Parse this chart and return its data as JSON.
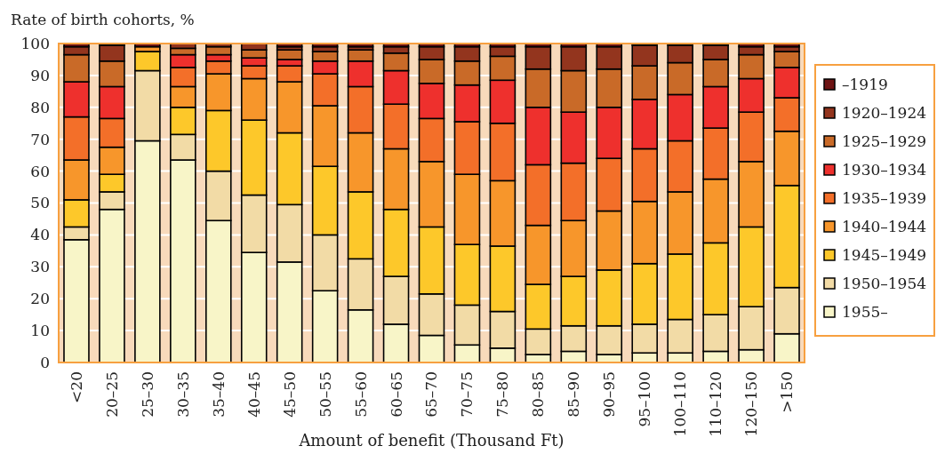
{
  "chart_data": {
    "type": "bar",
    "stacked": true,
    "ylabel": "Rate of birth cohorts, %",
    "xlabel": "Amount of benefit (Thousand Ft)",
    "categories": [
      "<20",
      "20–25",
      "25–30",
      "30–35",
      "35–40",
      "40–45",
      "45–50",
      "50–55",
      "55–60",
      "60–65",
      "65–70",
      "70–75",
      "75–80",
      "80–85",
      "85–90",
      "90–95",
      "95–100",
      "100–110",
      "110–120",
      "120–150",
      ">150"
    ],
    "ylim": [
      0,
      100
    ],
    "yticks": [
      0,
      10,
      20,
      30,
      40,
      50,
      60,
      70,
      80,
      90,
      100
    ],
    "grid": "y",
    "legend": "right",
    "series": [
      {
        "name": "1955–",
        "color": "#f8f5c8",
        "values": [
          38.5,
          48,
          69.5,
          63.5,
          44.5,
          34.5,
          31.5,
          22.5,
          16.5,
          12,
          8.5,
          5.5,
          4.5,
          2.5,
          3.5,
          2.5,
          3,
          3,
          3.5,
          4,
          9
        ]
      },
      {
        "name": "1950–1954",
        "color": "#f2dba6",
        "values": [
          4,
          5.5,
          22,
          8,
          15.5,
          18,
          18,
          17.5,
          16,
          15,
          13,
          12.5,
          11.5,
          8,
          8,
          9,
          9,
          10.5,
          11.5,
          13.5,
          14.5
        ]
      },
      {
        "name": "1945–1949",
        "color": "#fdc82a",
        "values": [
          8.5,
          5.5,
          6,
          8.5,
          19,
          23.5,
          22.5,
          21.5,
          21,
          21,
          21,
          19,
          20.5,
          14,
          15.5,
          17.5,
          19,
          20.5,
          22.5,
          25,
          32
        ]
      },
      {
        "name": "1940–1944",
        "color": "#f7962b",
        "values": [
          12.5,
          8.5,
          1.5,
          6.5,
          11.5,
          13,
          16,
          19,
          18.5,
          19,
          20.5,
          22,
          20.5,
          18.5,
          17.5,
          18.5,
          19.5,
          19.5,
          20,
          20.5,
          17
        ]
      },
      {
        "name": "1935–1939",
        "color": "#f36f29",
        "values": [
          13.5,
          9,
          0,
          6,
          4,
          4,
          5,
          10,
          14.5,
          14,
          13.5,
          16.5,
          18,
          19,
          18,
          16.5,
          16.5,
          16,
          16,
          15.5,
          10.5
        ]
      },
      {
        "name": "1930–1934",
        "color": "#ee302d",
        "values": [
          11,
          10,
          0,
          4,
          2,
          2.5,
          2,
          4,
          8,
          10.5,
          11,
          11.5,
          13.5,
          18,
          16,
          16,
          15.5,
          14.5,
          13,
          10.5,
          9.5
        ]
      },
      {
        "name": "1925–1929",
        "color": "#c96a28",
        "values": [
          8.5,
          8,
          0,
          2,
          2.5,
          2.5,
          3,
          3,
          3.5,
          5.5,
          7.5,
          7.5,
          7.5,
          12,
          13,
          12,
          10.5,
          10,
          8.5,
          7.5,
          5
        ]
      },
      {
        "name": "1920–1924",
        "color": "#93351e",
        "values": [
          2.5,
          5,
          0,
          1.5,
          1,
          2,
          1,
          1.5,
          1,
          2,
          4,
          4.5,
          3,
          7,
          7.5,
          7,
          6.5,
          5.5,
          4.5,
          2.5,
          1.5
        ]
      },
      {
        "name": "–1919",
        "color": "#6e1414",
        "values": [
          1,
          0.5,
          1,
          0,
          0,
          0,
          1,
          1,
          1,
          1,
          1,
          1,
          1,
          1,
          1,
          1,
          0.5,
          0.5,
          0.5,
          1,
          1
        ]
      }
    ]
  }
}
